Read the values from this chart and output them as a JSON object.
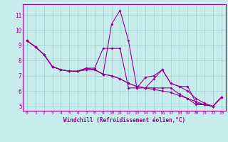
{
  "xlabel": "Windchill (Refroidissement éolien,°C)",
  "ylabel": "",
  "background_color": "#c8ecec",
  "line_color": "#990099",
  "grid_color": "#9ecece",
  "xmin": -0.5,
  "xmax": 23.5,
  "ymin": 4.7,
  "ymax": 11.7,
  "yticks": [
    5,
    6,
    7,
    8,
    9,
    10,
    11
  ],
  "xticks": [
    0,
    1,
    2,
    3,
    4,
    5,
    6,
    7,
    8,
    9,
    10,
    11,
    12,
    13,
    14,
    15,
    16,
    17,
    18,
    19,
    20,
    21,
    22,
    23
  ],
  "line1": [
    9.3,
    8.9,
    8.4,
    7.6,
    7.4,
    7.3,
    7.3,
    7.4,
    7.4,
    7.1,
    10.4,
    11.3,
    9.3,
    6.2,
    6.9,
    7.0,
    7.4,
    6.5,
    6.3,
    6.3,
    5.2,
    5.1,
    5.0,
    5.6
  ],
  "line2": [
    9.3,
    8.9,
    8.4,
    7.6,
    7.4,
    7.3,
    7.3,
    7.5,
    7.5,
    8.8,
    8.8,
    8.8,
    6.2,
    6.2,
    6.2,
    6.2,
    6.2,
    6.2,
    5.8,
    5.5,
    5.1,
    5.1,
    5.0,
    5.6
  ],
  "line3": [
    9.3,
    8.9,
    8.4,
    7.6,
    7.4,
    7.3,
    7.3,
    7.5,
    7.4,
    7.1,
    7.0,
    6.8,
    6.5,
    6.3,
    6.2,
    6.8,
    7.4,
    6.5,
    6.3,
    6.0,
    5.5,
    5.2,
    5.0,
    5.6
  ],
  "line4": [
    9.3,
    8.9,
    8.4,
    7.6,
    7.4,
    7.3,
    7.3,
    7.4,
    7.4,
    7.1,
    7.0,
    6.8,
    6.5,
    6.3,
    6.2,
    6.1,
    6.0,
    5.9,
    5.7,
    5.5,
    5.3,
    5.1,
    5.0,
    5.6
  ]
}
